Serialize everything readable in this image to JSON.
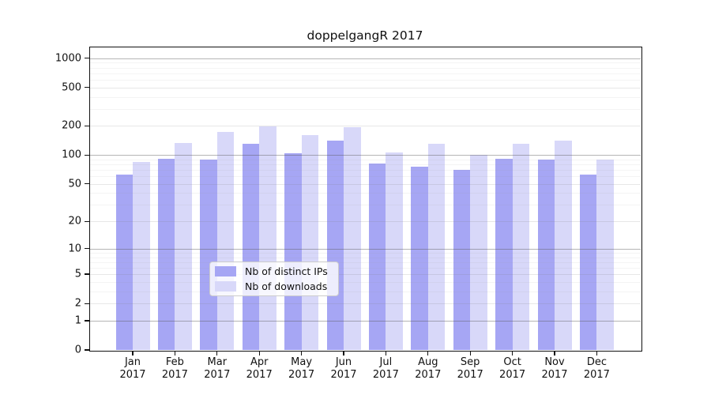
{
  "chart_data": {
    "type": "bar",
    "title": "doppelgangR 2017",
    "scale": "log1p",
    "categories": [
      "Jan",
      "Feb",
      "Mar",
      "Apr",
      "May",
      "Jun",
      "Jul",
      "Aug",
      "Sep",
      "Oct",
      "Nov",
      "Dec"
    ],
    "year_label": "2017",
    "series": [
      {
        "name": "Nb of distinct IPs",
        "color": "#a6a6f4",
        "values": [
          63,
          92,
          90,
          132,
          105,
          140,
          82,
          76,
          70,
          92,
          90,
          62
        ]
      },
      {
        "name": "Nb of downloads",
        "color": "#d8d8f9",
        "values": [
          84,
          134,
          172,
          199,
          160,
          196,
          107,
          132,
          101,
          130,
          142,
          90
        ]
      }
    ],
    "yticks": [
      0,
      1,
      2,
      5,
      10,
      20,
      50,
      100,
      200,
      500,
      1000
    ],
    "ylim": [
      0,
      1290
    ],
    "grid": true,
    "legend_position": "lower center",
    "colors": {
      "spine": "#111111",
      "gridline_major": "#5a5a5a",
      "background": "#ffffff"
    }
  }
}
